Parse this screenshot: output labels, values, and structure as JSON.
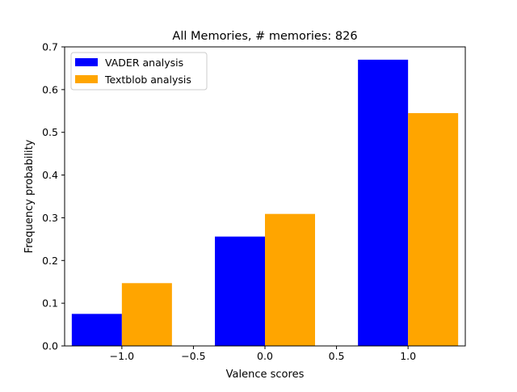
{
  "chart_data": {
    "type": "bar",
    "title": "All Memories, # memories: 826",
    "xlabel": "Valence scores",
    "ylabel": "Frequency probability",
    "xlim": [
      -1.4,
      1.4
    ],
    "ylim": [
      0,
      0.7
    ],
    "xticks": [
      -1.0,
      -0.5,
      0.0,
      0.5,
      1.0
    ],
    "xtick_labels": [
      "−1.0",
      "−0.5",
      "0.0",
      "0.5",
      "1.0"
    ],
    "yticks": [
      0.0,
      0.1,
      0.2,
      0.3,
      0.4,
      0.5,
      0.6,
      0.7
    ],
    "ytick_labels": [
      "0.0",
      "0.1",
      "0.2",
      "0.3",
      "0.4",
      "0.5",
      "0.6",
      "0.7"
    ],
    "bin_centers": [
      -1.0,
      0.0,
      1.0
    ],
    "bar_width": 0.35,
    "grid": false,
    "legend_position": "top-left",
    "series": [
      {
        "name": "VADER analysis",
        "color": "#0000ff",
        "offset": -0.175,
        "values": [
          0.075,
          0.256,
          0.67
        ]
      },
      {
        "name": "Textblob analysis",
        "color": "#ffa500",
        "offset": 0.175,
        "values": [
          0.147,
          0.309,
          0.545
        ]
      }
    ]
  }
}
